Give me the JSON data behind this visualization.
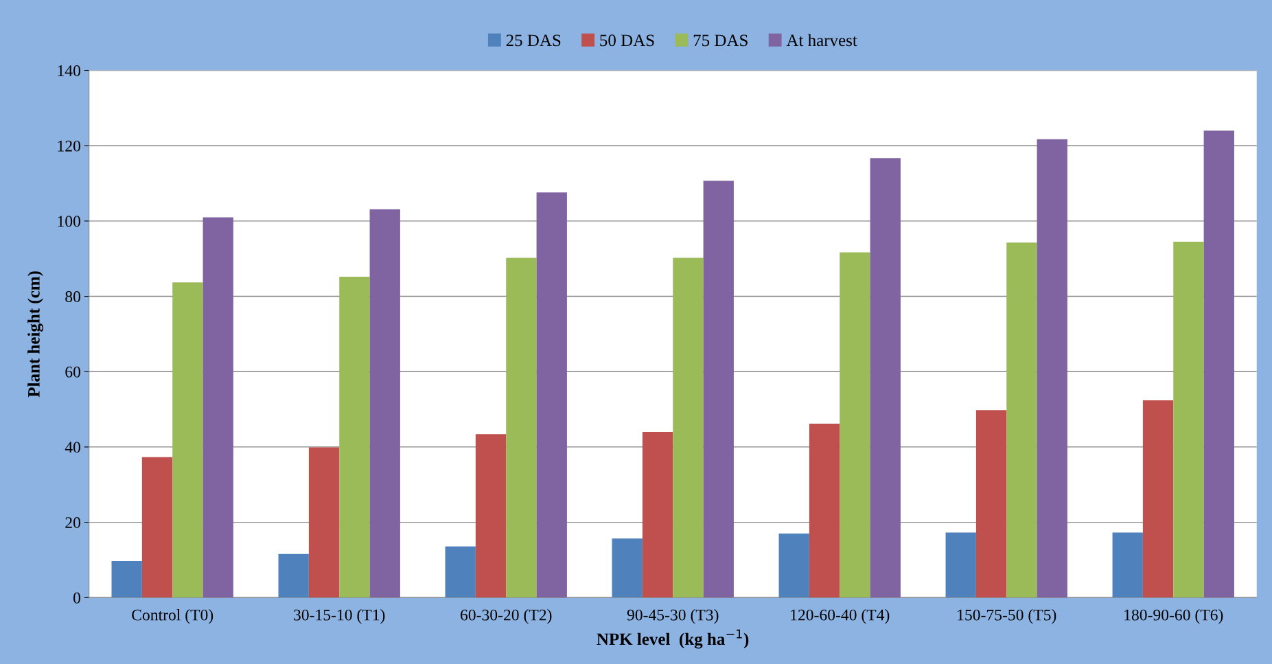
{
  "chart_data": {
    "type": "bar",
    "xlabel": "NPK level  (kg ha$^{−1}$)",
    "ylabel": "Plant height (cm)",
    "categories": [
      "Control (T0)",
      "30-15-10 (T1)",
      "60-30-20 (T2)",
      "90-45-30 (T3)",
      "120-60-40 (T4)",
      "150-75-50 (T5)",
      "180-90-60 (T6)"
    ],
    "series": [
      {
        "name": "25 DAS",
        "color": "#4f81bd",
        "values": [
          9.7,
          11.6,
          13.6,
          15.7,
          17.0,
          17.3,
          17.3
        ]
      },
      {
        "name": "50 DAS",
        "color": "#c0504d",
        "values": [
          37.3,
          39.9,
          43.4,
          44.0,
          46.2,
          49.8,
          52.4
        ]
      },
      {
        "name": "75 DAS",
        "color": "#9bbb59",
        "values": [
          83.7,
          85.2,
          90.2,
          90.2,
          91.7,
          94.3,
          94.5
        ]
      },
      {
        "name": "At harvest",
        "color": "#8064a2",
        "values": [
          101.0,
          103.1,
          107.6,
          110.7,
          116.7,
          121.7,
          124.0
        ]
      }
    ],
    "ylim": [
      0,
      140
    ],
    "yticks": [
      0,
      20,
      40,
      60,
      80,
      100,
      120,
      140
    ],
    "grid": "y",
    "legend": "top"
  }
}
